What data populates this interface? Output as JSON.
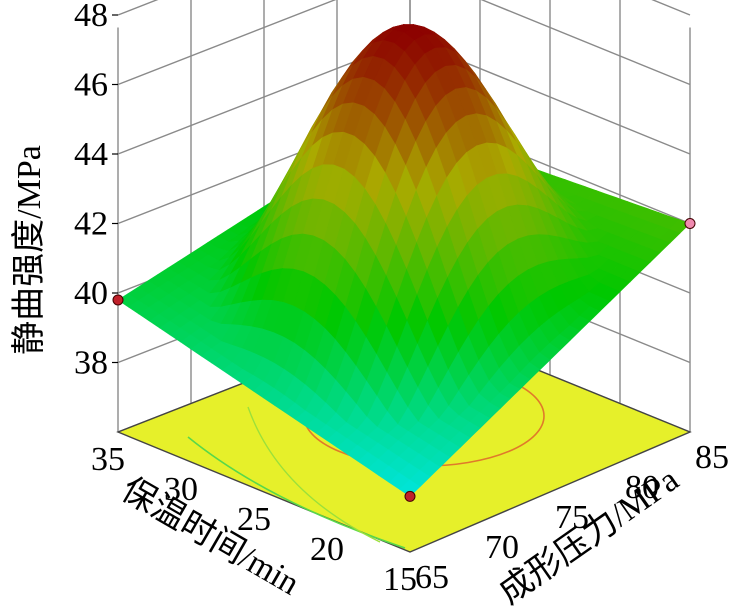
{
  "chart_data": {
    "type": "surface3d",
    "zlabel": "静曲强度/MPa",
    "xlabel": "保温时间/min",
    "ylabel": "成形压力/MPa",
    "xlim": [
      15,
      35
    ],
    "ylim": [
      65,
      85
    ],
    "zlim": [
      36,
      48
    ],
    "x_ticks": [
      "35",
      "30",
      "25",
      "20",
      "15"
    ],
    "y_ticks": [
      "65",
      "70",
      "75",
      "80",
      "85"
    ],
    "z_ticks": [
      "38",
      "40",
      "42",
      "44",
      "46",
      "48"
    ],
    "grid": true,
    "surface_colormap": [
      "#00ffff",
      "#00ff00",
      "#ffff00",
      "#ff0000"
    ],
    "floor_color": "#e6f02a",
    "design_points": [
      {
        "x": 35,
        "y": 65,
        "z": 39.8
      },
      {
        "x": 15,
        "y": 65,
        "z": 37.6
      },
      {
        "x": 15,
        "y": 85,
        "z": 42.0
      }
    ],
    "surface_peak": {
      "x": 25,
      "y": 75,
      "z": 47.5
    },
    "surface_corners": [
      {
        "x": 35,
        "y": 65,
        "z": 39.8
      },
      {
        "x": 15,
        "y": 65,
        "z": 37.6
      },
      {
        "x": 15,
        "y": 85,
        "z": 42.0
      },
      {
        "x": 35,
        "y": 85,
        "z": 41.5
      }
    ]
  }
}
